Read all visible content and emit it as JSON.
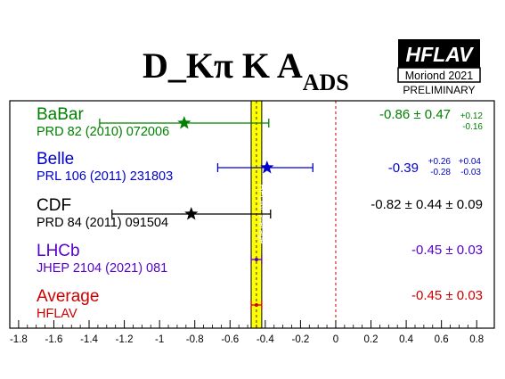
{
  "chart_data": {
    "type": "scatter",
    "title": {
      "main": "D_Kπ K A",
      "subscript": "ADS"
    },
    "badge": {
      "logo": "HFLAV",
      "line1": "Moriond 2021",
      "line2": "PRELIMINARY"
    },
    "xlim": [
      -1.85,
      0.9
    ],
    "xticks": [
      -1.8,
      -1.6,
      -1.4,
      -1.2,
      -1,
      -0.8,
      -0.6,
      -0.4,
      -0.2,
      0,
      0.2,
      0.4,
      0.6,
      0.8
    ],
    "xtick_labels": [
      "-1.8",
      "-1.6",
      "-1.4",
      "-1.2",
      "-1",
      "-0.8",
      "-0.6",
      "-0.4",
      "-0.2",
      "0",
      "0.2",
      "0.4",
      "0.6",
      "0.8"
    ],
    "grid": false,
    "average_band": {
      "value": -0.45,
      "error": 0.03,
      "color": "#ffff00",
      "label": "HFLAV average"
    },
    "zero_line": {
      "value": 0,
      "color": "#cc0000"
    },
    "measurements": [
      {
        "name": "BaBar",
        "reference": "PRD 82 (2010) 072006",
        "value": -0.86,
        "err_low": -1.34,
        "err_high": -0.38,
        "result_text": "-0.86 ± 0.47",
        "syst_up": "+0.12",
        "syst_down": "-0.16",
        "color": "#008000",
        "marker": "star"
      },
      {
        "name": "Belle",
        "reference": "PRL 106 (2011) 231803",
        "value": -0.39,
        "err_low": -0.67,
        "err_high": -0.13,
        "result_text": "-0.39",
        "stat_up": "+0.26",
        "stat_down": "-0.28",
        "syst_up": "+0.04",
        "syst_down": "-0.03",
        "color": "#0000cc",
        "marker": "star"
      },
      {
        "name": "CDF",
        "reference": "PRD 84 (2011) 091504",
        "value": -0.82,
        "err_low": -1.27,
        "err_high": -0.37,
        "result_text": "-0.82 ± 0.44 ± 0.09",
        "color": "#000000",
        "marker": "star"
      },
      {
        "name": "LHCb",
        "reference": "JHEP 2104 (2021) 081",
        "value": -0.45,
        "err_low": -0.48,
        "err_high": -0.42,
        "result_text": "-0.45 ± 0.03",
        "color": "#5500cc",
        "marker": "dot"
      },
      {
        "name": "Average",
        "reference": "HFLAV",
        "value": -0.45,
        "err_low": -0.48,
        "err_high": -0.42,
        "result_text": "-0.45 ± 0.03",
        "color": "#cc0000",
        "marker": "dot"
      }
    ]
  }
}
